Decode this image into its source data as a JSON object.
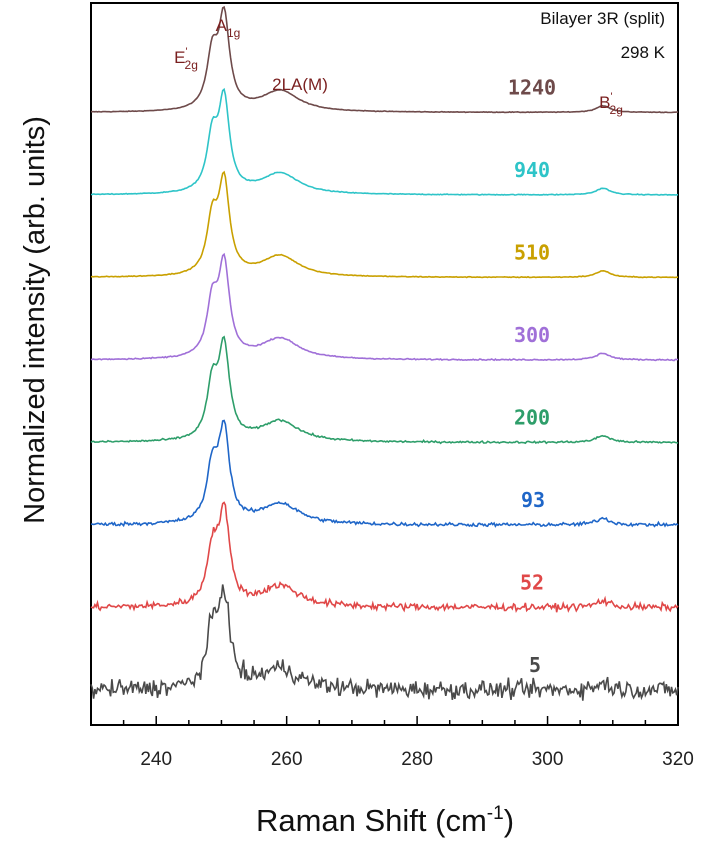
{
  "chart_data": {
    "type": "line",
    "title": "",
    "xlabel": "Raman Shift (cm",
    "xlabel_sup": "-1",
    "xlabel_suffix": ")",
    "ylabel": "Normalized intensity (arb. units)",
    "xlim": [
      230,
      320
    ],
    "x_ticks": [
      240,
      260,
      280,
      300,
      320
    ],
    "y_ticks_shown": false,
    "grid": false,
    "annotations": {
      "sample": "Bilayer 3R (split)",
      "temperature": "298 K",
      "peaks": [
        {
          "base": "E",
          "prime": "'",
          "sub": "2g",
          "x": 248.5
        },
        {
          "base": "A",
          "prime": "",
          "sub": "1g",
          "x": 250.5
        },
        {
          "base": "2LA(M)",
          "prime": "",
          "sub": "",
          "x": 259
        },
        {
          "base": "B",
          "prime": "'",
          "sub": "2g",
          "x": 308.5
        }
      ]
    },
    "series": [
      {
        "name": "1240",
        "color": "#6e4a4a",
        "offset": 7,
        "noise": 0.003
      },
      {
        "name": "940",
        "color": "#2ec4c8",
        "offset": 6,
        "noise": 0.004
      },
      {
        "name": "510",
        "color": "#c9a000",
        "offset": 5,
        "noise": 0.004
      },
      {
        "name": "300",
        "color": "#a070d8",
        "offset": 4,
        "noise": 0.006
      },
      {
        "name": "200",
        "color": "#2e9e6a",
        "offset": 3,
        "noise": 0.01
      },
      {
        "name": "93",
        "color": "#1f66c8",
        "offset": 2,
        "noise": 0.018
      },
      {
        "name": "52",
        "color": "#e04848",
        "offset": 1,
        "noise": 0.035
      },
      {
        "name": "5",
        "color": "#4a4a4a",
        "offset": 0,
        "noise": 0.09
      }
    ],
    "peak_model": [
      {
        "center": 248.6,
        "width": 1.0,
        "height": 0.55
      },
      {
        "center": 250.4,
        "width": 1.0,
        "height": 0.95
      },
      {
        "center": 259.0,
        "width": 3.5,
        "height": 0.22
      },
      {
        "center": 308.5,
        "width": 1.3,
        "height": 0.07
      }
    ]
  }
}
